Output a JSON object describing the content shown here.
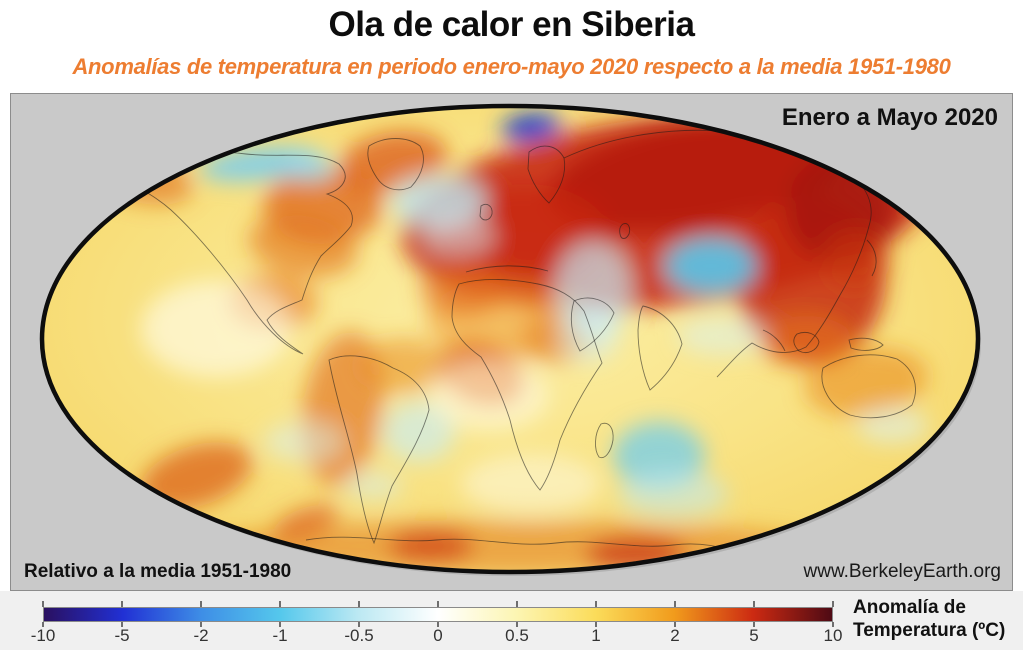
{
  "header": {
    "title": "Ola de calor en Siberia",
    "subtitle": "Anomalías de temperatura en periodo enero-mayo 2020 respecto a la media 1951-1980",
    "subtitle_color": "#ED7D31"
  },
  "map_panel": {
    "period_label": "Enero a Mayo 2020",
    "baseline_label": "Relativo a la media 1951-1980",
    "source_label": "www.BerkeleyEarth.org",
    "background": "#C9C9C9"
  },
  "colorbar": {
    "label_line1": "Anomalía de",
    "label_line2": "Temperatura (ºC)",
    "ticks": [
      "-10",
      "-5",
      "-2",
      "-1",
      "-0.5",
      "0",
      "0.5",
      "1",
      "2",
      "5",
      "10"
    ],
    "stops": [
      "#2A1060",
      "#2130D4",
      "#3E8EE6",
      "#55C8EC",
      "#BDE9F3",
      "#FFFFFF",
      "#FCF5B2",
      "#FBDC5A",
      "#F19B1C",
      "#CC2A12",
      "#4E0A14"
    ]
  },
  "chart_data": {
    "type": "heatmap",
    "projection": "mollweide world map",
    "title": "Enero a Mayo 2020",
    "units": "ºC",
    "scale_label": "Anomalía de Temperatura (ºC)",
    "scale_type": "nonlinear",
    "scale_ticks": [
      -10,
      -5,
      -2,
      -1,
      -0.5,
      0,
      0.5,
      1,
      2,
      5,
      10
    ],
    "scale_colors": [
      "#2A1060",
      "#2130D4",
      "#3E8EE6",
      "#55C8EC",
      "#BDE9F3",
      "#FFFFFF",
      "#FCF5B2",
      "#FBDC5A",
      "#F19B1C",
      "#CC2A12",
      "#4E0A14"
    ],
    "baseline": "media 1951-1980",
    "base_ocean_anomaly": 0.7,
    "regions": [
      {
        "name": "siberia-core",
        "anomaly": 9,
        "r": [
          690,
          78,
          155,
          55,
          -10,
          "#6B0A10",
          1
        ]
      },
      {
        "name": "eurasia-arctic",
        "anomaly": 5,
        "r": [
          655,
          118,
          265,
          95,
          -6,
          "#C41F0E",
          0.85
        ]
      },
      {
        "name": "europe",
        "anomaly": 4,
        "r": [
          515,
          145,
          85,
          55,
          0,
          "#C8230F",
          0.7
        ]
      },
      {
        "name": "east-asia",
        "anomaly": 5,
        "r": [
          800,
          185,
          75,
          85,
          0,
          "#C62A10",
          0.85
        ]
      },
      {
        "name": "sea-of-okhotsk",
        "anomaly": 6,
        "r": [
          830,
          115,
          55,
          55,
          0,
          "#A01409",
          0.75
        ]
      },
      {
        "name": "japan-korea",
        "anomaly": 3,
        "r": [
          845,
          165,
          35,
          30,
          0,
          "#CC3A12",
          0.6
        ]
      },
      {
        "name": "greenland",
        "anomaly": 3,
        "r": [
          382,
          68,
          55,
          30,
          -10,
          "#D85012",
          0.7
        ]
      },
      {
        "name": "baffin-hudson",
        "anomaly": 3,
        "r": [
          312,
          112,
          60,
          38,
          0,
          "#DE6418",
          0.75
        ]
      },
      {
        "name": "great-lakes",
        "anomaly": 2,
        "r": [
          292,
          152,
          55,
          30,
          10,
          "#E47820",
          0.65
        ]
      },
      {
        "name": "alaska",
        "anomaly": 2,
        "r": [
          128,
          82,
          55,
          26,
          15,
          "#DE6016",
          0.55
        ]
      },
      {
        "name": "sahara",
        "anomaly": 2,
        "r": [
          495,
          225,
          80,
          40,
          0,
          "#EE9426",
          0.55
        ]
      },
      {
        "name": "west-africa",
        "anomaly": 3,
        "r": [
          470,
          280,
          45,
          30,
          20,
          "#DE6214",
          0.7
        ]
      },
      {
        "name": "northwest-africa",
        "anomaly": 3,
        "r": [
          452,
          195,
          42,
          26,
          0,
          "#E26A1A",
          0.65
        ]
      },
      {
        "name": "central-africa",
        "anomaly": 2,
        "r": [
          545,
          245,
          35,
          25,
          0,
          "#E47820",
          0.5
        ]
      },
      {
        "name": "mexico",
        "anomaly": 2,
        "r": [
          262,
          208,
          45,
          28,
          0,
          "#E8791E",
          0.6
        ]
      },
      {
        "name": "south-america",
        "anomaly": 2,
        "r": [
          332,
          315,
          40,
          78,
          8,
          "#E06616",
          0.6
        ]
      },
      {
        "name": "northeast-brazil",
        "anomaly": 2,
        "r": [
          392,
          272,
          45,
          28,
          0,
          "#EA8C22",
          0.55
        ]
      },
      {
        "name": "south-pacific-warm",
        "anomaly": 3,
        "r": [
          185,
          382,
          58,
          30,
          -18,
          "#DA5814",
          0.7
        ]
      },
      {
        "name": "indonesia",
        "anomaly": 2,
        "r": [
          795,
          248,
          48,
          26,
          0,
          "#E8791E",
          0.55
        ]
      },
      {
        "name": "north-australia",
        "anomaly": 1.5,
        "r": [
          855,
          288,
          62,
          34,
          -8,
          "#EA8C22",
          0.6
        ]
      },
      {
        "name": "antarctica-coast",
        "anomaly": 2,
        "r": [
          500,
          452,
          310,
          26,
          0,
          "#E2701C",
          0.5
        ]
      },
      {
        "name": "antarctica-east",
        "anomaly": 5,
        "r": [
          625,
          460,
          50,
          16,
          0,
          "#C62810",
          0.7
        ]
      },
      {
        "name": "antarctica-west",
        "anomaly": 5,
        "r": [
          420,
          452,
          42,
          16,
          0,
          "#CC3410",
          0.65
        ]
      },
      {
        "name": "antarctic-peninsula",
        "anomaly": 3,
        "r": [
          295,
          428,
          34,
          14,
          -20,
          "#D84C12",
          0.6
        ]
      },
      {
        "name": "nunavut-cool",
        "anomaly": -1,
        "r": [
          250,
          70,
          62,
          16,
          -6,
          "#7CCEEE",
          0.9
        ]
      },
      {
        "name": "nunavut-cool-east",
        "anomaly": -0.5,
        "r": [
          300,
          74,
          25,
          12,
          0,
          "#9ADCF2",
          0.8
        ]
      },
      {
        "name": "svalbard-cold",
        "anomaly": -3,
        "r": [
          520,
          33,
          30,
          13,
          -8,
          "#1746D8",
          0.95
        ]
      },
      {
        "name": "svalbard-cold-core",
        "anomaly": -5,
        "r": [
          512,
          31,
          13,
          7,
          -8,
          "#0C2CC0",
          0.9
        ]
      },
      {
        "name": "north-atlantic-cool",
        "anomaly": -0.5,
        "r": [
          428,
          108,
          48,
          26,
          0,
          "#BFE9F3",
          0.8
        ]
      },
      {
        "name": "uk-west-cool",
        "anomaly": -0.5,
        "r": [
          448,
          142,
          36,
          20,
          0,
          "#D8F1F7",
          0.55
        ]
      },
      {
        "name": "tibet-cool",
        "anomaly": -1,
        "r": [
          700,
          172,
          46,
          28,
          0,
          "#58C8EC",
          0.9
        ]
      },
      {
        "name": "nile-arabia-cool",
        "anomaly": -0.5,
        "r": [
          582,
          195,
          38,
          48,
          0,
          "#C6EAF3",
          0.7
        ]
      },
      {
        "name": "south-arabia-cool",
        "anomaly": -0.5,
        "r": [
          578,
          240,
          30,
          28,
          0,
          "#D2EFF6",
          0.55
        ]
      },
      {
        "name": "south-indian-ocean-cool",
        "anomaly": -1,
        "r": [
          648,
          362,
          46,
          34,
          0,
          "#70CCEC",
          0.75
        ]
      },
      {
        "name": "indian-ocean-cool-ext",
        "anomaly": -0.5,
        "r": [
          662,
          400,
          55,
          24,
          0,
          "#BEE9F3",
          0.55
        ]
      },
      {
        "name": "argentina-east-cool",
        "anomaly": -0.5,
        "r": [
          408,
          338,
          36,
          30,
          0,
          "#C8ECF4",
          0.65
        ]
      },
      {
        "name": "pacific-equator-cool",
        "anomaly": -0.3,
        "r": [
          712,
          242,
          46,
          20,
          0,
          "#DAF3F8",
          0.5
        ]
      },
      {
        "name": "south-atlantic-cool",
        "anomaly": -0.3,
        "r": [
          362,
          392,
          30,
          15,
          0,
          "#D4F0F6",
          0.5
        ]
      },
      {
        "name": "chile-west-cool",
        "anomaly": -0.3,
        "r": [
          292,
          348,
          40,
          20,
          0,
          "#D8F2F8",
          0.5
        ]
      },
      {
        "name": "south-australia-cool",
        "anomaly": -0.3,
        "r": [
          882,
          332,
          36,
          18,
          0,
          "#DAF3F8",
          0.55
        ]
      },
      {
        "name": "east-pacific-neutral",
        "anomaly": 0.2,
        "r": [
          205,
          235,
          75,
          48,
          0,
          "#FFFDF0",
          0.6
        ]
      },
      {
        "name": "south-atlantic-neutral",
        "anomaly": 0.2,
        "r": [
          478,
          302,
          60,
          35,
          0,
          "#FFFDF0",
          0.5
        ]
      },
      {
        "name": "southern-ocean-neutral",
        "anomaly": 0.2,
        "r": [
          520,
          390,
          70,
          30,
          0,
          "#FEFBE8",
          0.5
        ]
      }
    ]
  }
}
